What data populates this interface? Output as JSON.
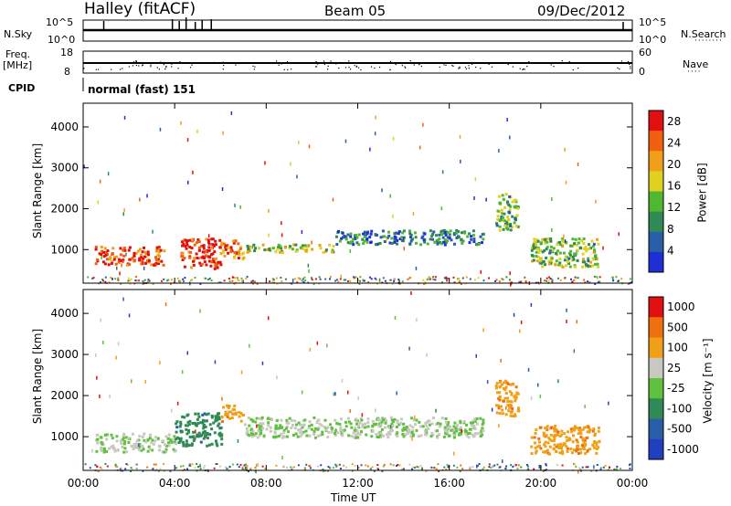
{
  "header": {
    "station": "Halley (fitACF)",
    "beam": "Beam 05",
    "date": "09/Dec/2012"
  },
  "summary": {
    "nsky_label": "N.Sky",
    "nsky_ticks": [
      "10^5",
      "10^0"
    ],
    "nsearch_label": "N.Search",
    "nsearch_ticks": [
      "10^5",
      "10^0"
    ],
    "freq_label": "Freq.",
    "freq_unit": "[MHz]",
    "freq_ticks": [
      "18",
      "8"
    ],
    "nave_label": "Nave",
    "nave_ticks": [
      "60",
      "0"
    ],
    "cpid_label": "CPID",
    "cpid_value": "normal (fast) 151"
  },
  "colors": {
    "power_scale": [
      "#1f2fd6",
      "#2a5fa8",
      "#2f8a55",
      "#50b830",
      "#e0d020",
      "#f0a018",
      "#f06010",
      "#e01010"
    ],
    "velocity_scale": [
      "#2040c0",
      "#2a5fa8",
      "#2f8a55",
      "#60c040",
      "#c8c8c0",
      "#f0a018",
      "#f07010",
      "#e01010"
    ]
  },
  "chart_data": [
    {
      "type": "heatmap",
      "name": "power",
      "ylabel": "Slant Range [km]",
      "xlabel": "Time UT",
      "x_tick_labels": [
        "00:00",
        "04:00",
        "08:00",
        "12:00",
        "16:00",
        "20:00",
        "00:00"
      ],
      "y_tick_labels": [
        "1000",
        "2000",
        "3000",
        "4000"
      ],
      "ylim": [
        180,
        4580
      ],
      "colorbar": {
        "label": "Power [dB]",
        "ticks": [
          "4",
          "8",
          "12",
          "16",
          "20",
          "24",
          "28"
        ],
        "range": [
          0,
          30
        ]
      },
      "regions": [
        {
          "t": [
            0.5,
            3.5
          ],
          "r": [
            650,
            1100
          ],
          "level": 0.85
        },
        {
          "t": [
            4.2,
            6.0
          ],
          "r": [
            550,
            1300
          ],
          "level": 0.9
        },
        {
          "t": [
            6.0,
            7.0
          ],
          "r": [
            800,
            1250
          ],
          "level": 0.75
        },
        {
          "t": [
            7.0,
            11.0
          ],
          "r": [
            950,
            1150
          ],
          "level": 0.5
        },
        {
          "t": [
            11.0,
            17.5
          ],
          "r": [
            1150,
            1500
          ],
          "level": 0.25
        },
        {
          "t": [
            18.0,
            19.0
          ],
          "r": [
            1500,
            2400
          ],
          "level": 0.4
        },
        {
          "t": [
            19.5,
            22.5
          ],
          "r": [
            600,
            1300
          ],
          "level": 0.45
        }
      ]
    },
    {
      "type": "heatmap",
      "name": "velocity",
      "ylabel": "Slant Range [km]",
      "xlabel": "Time UT",
      "x_tick_labels": [
        "00:00",
        "04:00",
        "08:00",
        "12:00",
        "16:00",
        "20:00",
        "00:00"
      ],
      "y_tick_labels": [
        "1000",
        "2000",
        "3000",
        "4000"
      ],
      "ylim": [
        180,
        4580
      ],
      "colorbar": {
        "label": "Velocity [m s⁻¹]",
        "ticks": [
          "1000",
          "500",
          "100",
          "25",
          "-25",
          "-100",
          "-500",
          "-1000"
        ],
        "range": [
          -1200,
          1200
        ]
      },
      "regions": [
        {
          "t": [
            0.5,
            4.0
          ],
          "r": [
            650,
            1100
          ],
          "level": 0.5
        },
        {
          "t": [
            4.0,
            6.0
          ],
          "r": [
            800,
            1600
          ],
          "level": 0.3
        },
        {
          "t": [
            6.0,
            7.0
          ],
          "r": [
            1400,
            1800
          ],
          "level": 0.7
        },
        {
          "t": [
            7.0,
            17.5
          ],
          "r": [
            1000,
            1500
          ],
          "level": 0.5
        },
        {
          "t": [
            18.0,
            19.0
          ],
          "r": [
            1500,
            2400
          ],
          "level": 0.72
        },
        {
          "t": [
            19.5,
            22.5
          ],
          "r": [
            600,
            1300
          ],
          "level": 0.72
        }
      ]
    }
  ]
}
